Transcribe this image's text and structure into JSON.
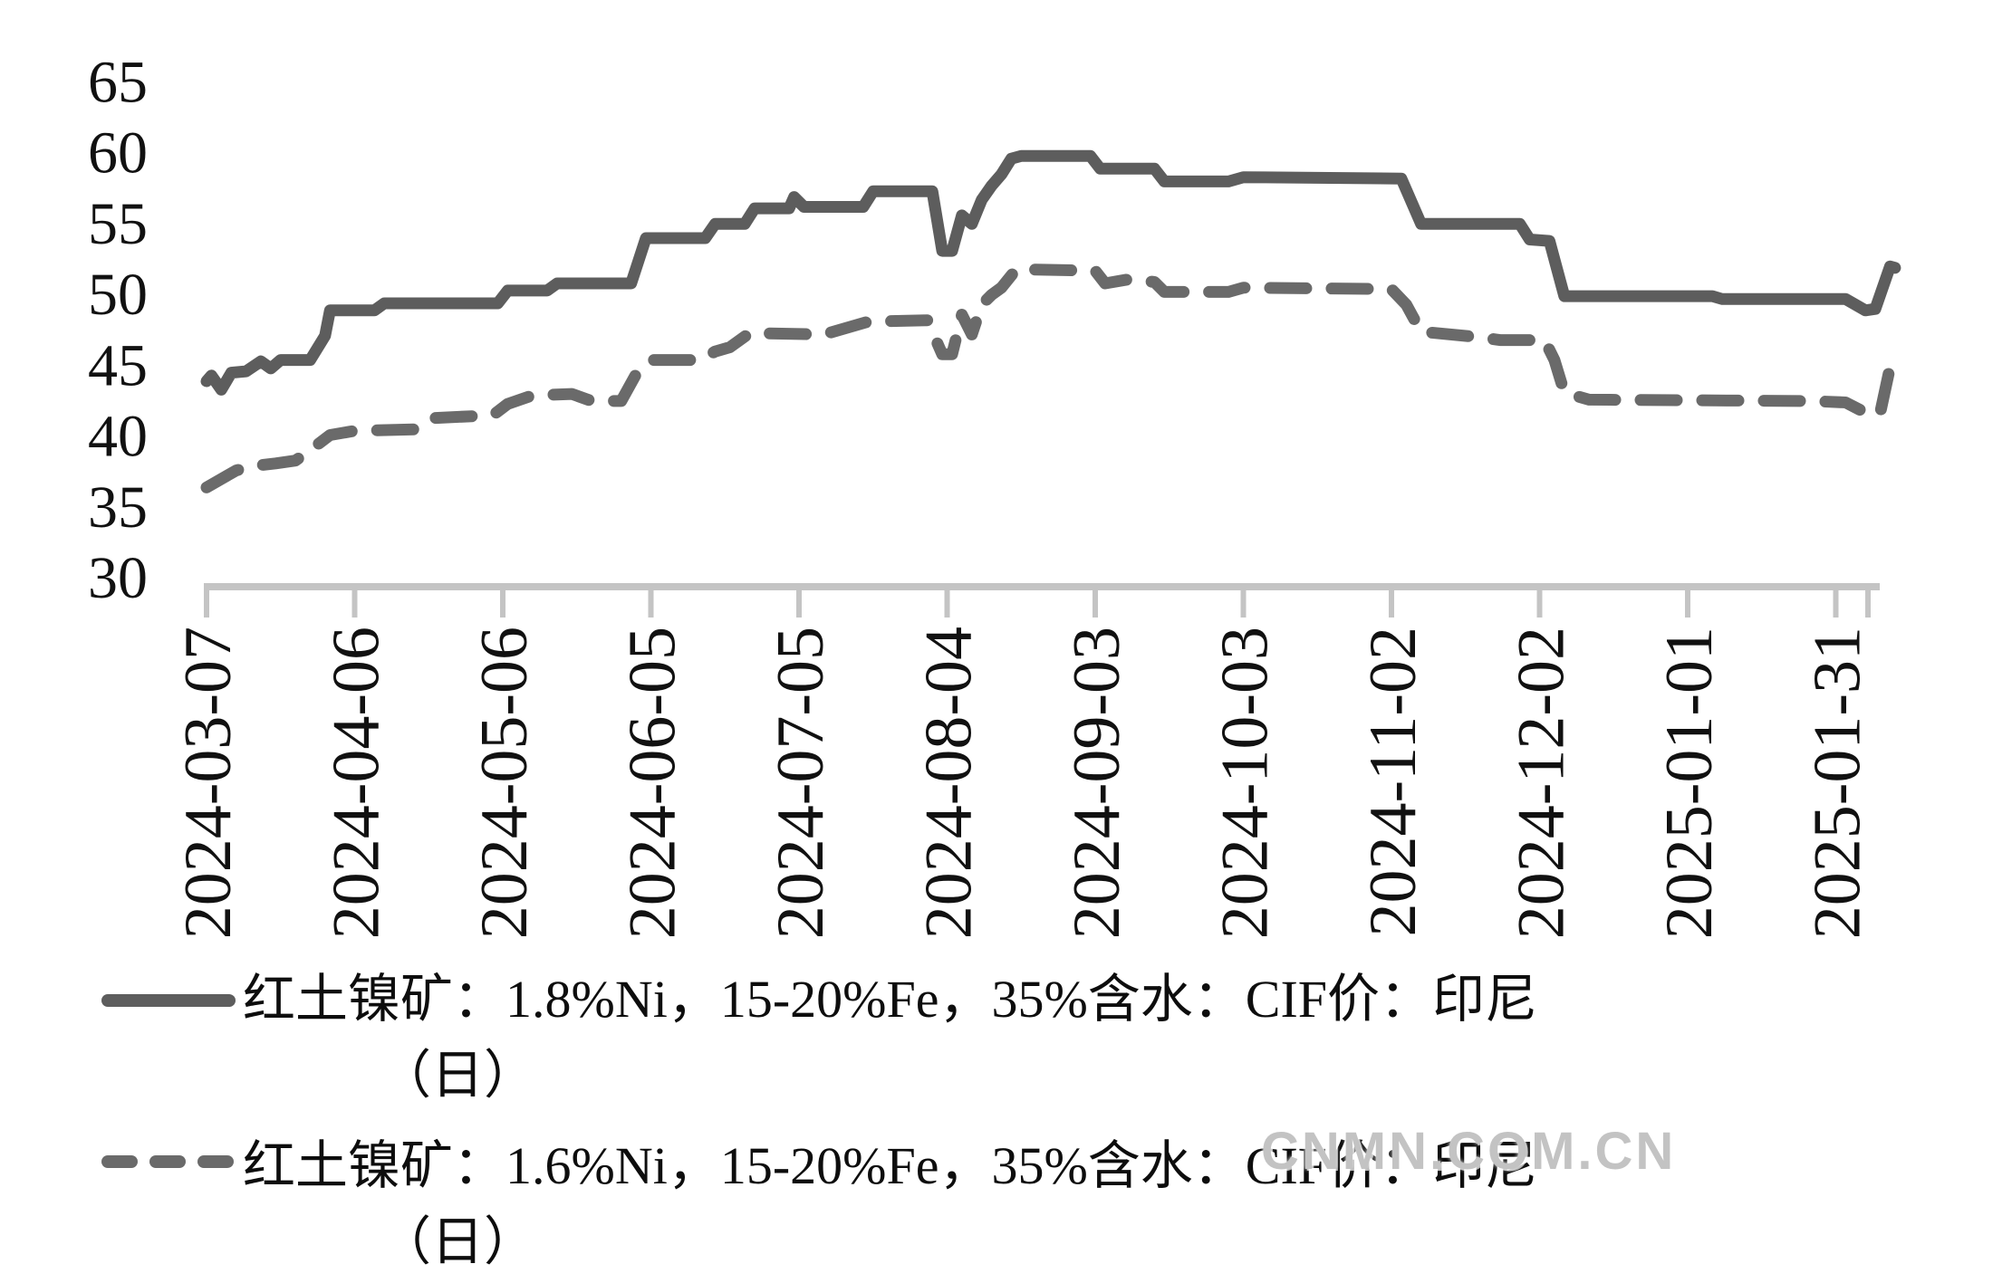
{
  "watermark": "CNMN.COM.CN",
  "chart_data": {
    "type": "line",
    "title": "",
    "xlabel": "",
    "ylabel": "",
    "ylim": [
      30,
      65
    ],
    "y_ticks": [
      65,
      60,
      55,
      50,
      45,
      40,
      35,
      30
    ],
    "x_tick_labels": [
      "2024-03-07",
      "2024-04-06",
      "2024-05-06",
      "2024-06-05",
      "2024-07-05",
      "2024-08-04",
      "2024-09-03",
      "2024-10-03",
      "2024-11-02",
      "2024-12-02",
      "2025-01-01",
      "2025-01-31"
    ],
    "x_tick_interval_days": 30,
    "grid": false,
    "legend_position": "bottom-left",
    "axis_color": "#c4c4c4",
    "text_color": "#111111",
    "series": [
      {
        "name_line1": "红土镍矿：1.8%Ni，15-20%Fe，35%含水：CIF价：印尼",
        "name_line2": "（日）",
        "style": "solid",
        "color": "#5d5d5d",
        "points_days_value": [
          [
            0,
            43.8
          ],
          [
            1,
            44.2
          ],
          [
            3,
            43.2
          ],
          [
            5,
            44.4
          ],
          [
            8,
            44.5
          ],
          [
            11,
            45.2
          ],
          [
            13,
            44.7
          ],
          [
            15,
            45.3
          ],
          [
            21,
            45.3
          ],
          [
            24,
            47.0
          ],
          [
            25,
            48.8
          ],
          [
            34,
            48.8
          ],
          [
            36,
            49.3
          ],
          [
            59,
            49.3
          ],
          [
            61,
            50.2
          ],
          [
            69,
            50.2
          ],
          [
            71,
            50.7
          ],
          [
            86,
            50.7
          ],
          [
            89,
            53.9
          ],
          [
            101,
            53.9
          ],
          [
            103,
            54.9
          ],
          [
            109,
            54.9
          ],
          [
            111,
            56.0
          ],
          [
            118,
            56.0
          ],
          [
            119,
            56.8
          ],
          [
            121,
            56.1
          ],
          [
            133,
            56.1
          ],
          [
            135,
            57.2
          ],
          [
            147,
            57.2
          ],
          [
            149,
            53.0
          ],
          [
            151,
            53.0
          ],
          [
            153,
            55.5
          ],
          [
            155,
            54.9
          ],
          [
            157,
            56.6
          ],
          [
            159,
            57.6
          ],
          [
            161,
            58.4
          ],
          [
            163,
            59.5
          ],
          [
            165,
            59.7
          ],
          [
            179,
            59.7
          ],
          [
            181,
            58.8
          ],
          [
            192,
            58.8
          ],
          [
            194,
            57.9
          ],
          [
            207,
            57.9
          ],
          [
            210,
            58.2
          ],
          [
            242,
            58.1
          ],
          [
            246,
            54.9
          ],
          [
            266,
            54.9
          ],
          [
            268,
            53.8
          ],
          [
            272,
            53.7
          ],
          [
            275,
            49.8
          ],
          [
            305,
            49.8
          ],
          [
            307,
            49.6
          ],
          [
            332,
            49.6
          ],
          [
            336,
            48.8
          ],
          [
            338,
            48.9
          ],
          [
            341,
            51.9
          ],
          [
            342,
            51.8
          ]
        ]
      },
      {
        "name_line1": "红土镍矿：1.6%Ni，15-20%Fe，35%含水：CIF价：印尼",
        "name_line2": "（日）",
        "style": "dashed",
        "color": "#6a6a6a",
        "points_days_value": [
          [
            0,
            36.3
          ],
          [
            3,
            36.9
          ],
          [
            6,
            37.5
          ],
          [
            9,
            37.8
          ],
          [
            14,
            38.0
          ],
          [
            18,
            38.2
          ],
          [
            22,
            39.2
          ],
          [
            25,
            40.0
          ],
          [
            30,
            40.3
          ],
          [
            42,
            40.4
          ],
          [
            46,
            41.2
          ],
          [
            58,
            41.4
          ],
          [
            61,
            42.2
          ],
          [
            66,
            42.8
          ],
          [
            74,
            42.9
          ],
          [
            78,
            42.4
          ],
          [
            84,
            42.4
          ],
          [
            87,
            44.3
          ],
          [
            90,
            45.3
          ],
          [
            100,
            45.3
          ],
          [
            103,
            45.9
          ],
          [
            106,
            46.2
          ],
          [
            110,
            47.2
          ],
          [
            125,
            47.1
          ],
          [
            134,
            48.0
          ],
          [
            146,
            48.1
          ],
          [
            149,
            45.7
          ],
          [
            151,
            45.7
          ],
          [
            153,
            48.5
          ],
          [
            155,
            47.1
          ],
          [
            157,
            49.2
          ],
          [
            159,
            49.9
          ],
          [
            161,
            50.4
          ],
          [
            164,
            51.7
          ],
          [
            180,
            51.6
          ],
          [
            182,
            50.7
          ],
          [
            187,
            51.0
          ],
          [
            192,
            50.8
          ],
          [
            194,
            50.1
          ],
          [
            207,
            50.1
          ],
          [
            210,
            50.4
          ],
          [
            240,
            50.3
          ],
          [
            243,
            49.2
          ],
          [
            246,
            47.3
          ],
          [
            258,
            46.9
          ],
          [
            262,
            46.7
          ],
          [
            271,
            46.7
          ],
          [
            273,
            45.3
          ],
          [
            275,
            43.0
          ],
          [
            280,
            42.5
          ],
          [
            325,
            42.4
          ],
          [
            332,
            42.3
          ],
          [
            337,
            41.4
          ],
          [
            339,
            41.6
          ],
          [
            341,
            44.8
          ],
          [
            342,
            44.9
          ]
        ]
      }
    ]
  }
}
